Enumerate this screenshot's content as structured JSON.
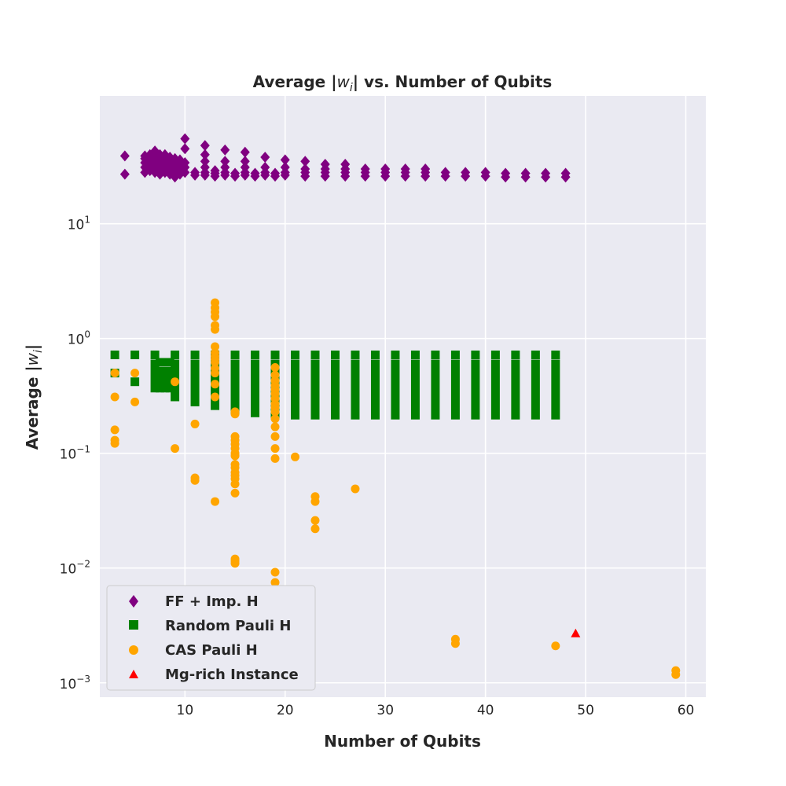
{
  "chart_data": {
    "type": "scatter",
    "title_prefix": "Average |",
    "title_var": "w",
    "title_sub": "i",
    "title_suffix": "| vs. Number of Qubits",
    "xlabel": "Number of Qubits",
    "ylabel_prefix": "Average |",
    "ylabel_var": "w",
    "ylabel_sub": "i",
    "ylabel_suffix": "|",
    "xlim": [
      1.5,
      62
    ],
    "ylim": [
      0.00075,
      130
    ],
    "yscale": "log",
    "grid": true,
    "legend_position": "lower-left",
    "x_ticks": [
      10,
      20,
      30,
      40,
      50,
      60
    ],
    "x_tick_labels": [
      "10",
      "20",
      "30",
      "40",
      "50",
      "60"
    ],
    "y_ticks": [
      0.001,
      0.01,
      0.1,
      1,
      10
    ],
    "y_tick_bases": [
      "10",
      "10",
      "10",
      "10",
      "10"
    ],
    "y_tick_exps": [
      "−3",
      "−2",
      "−1",
      "0",
      "1"
    ],
    "series": [
      {
        "name": "FF + Imp. H",
        "marker": "diamond",
        "color": "#800080",
        "points": [
          [
            4,
            27
          ],
          [
            4,
            39
          ],
          [
            6,
            28
          ],
          [
            6,
            31
          ],
          [
            6,
            34
          ],
          [
            6,
            37
          ],
          [
            6,
            39
          ],
          [
            6.5,
            29
          ],
          [
            6.5,
            33
          ],
          [
            6.5,
            36
          ],
          [
            6.5,
            40
          ],
          [
            7,
            28
          ],
          [
            7,
            31
          ],
          [
            7,
            34
          ],
          [
            7,
            37
          ],
          [
            7,
            40
          ],
          [
            7,
            43
          ],
          [
            7.5,
            27
          ],
          [
            7.5,
            30
          ],
          [
            7.5,
            33
          ],
          [
            7.5,
            36
          ],
          [
            7.5,
            40
          ],
          [
            8,
            28
          ],
          [
            8,
            31
          ],
          [
            8,
            34
          ],
          [
            8,
            37
          ],
          [
            8,
            40
          ],
          [
            8.5,
            27
          ],
          [
            8.5,
            30
          ],
          [
            8.5,
            34
          ],
          [
            8.5,
            38
          ],
          [
            9,
            25.5
          ],
          [
            9,
            28
          ],
          [
            9,
            31
          ],
          [
            9,
            34
          ],
          [
            9,
            37
          ],
          [
            9.5,
            27
          ],
          [
            9.5,
            30
          ],
          [
            9.5,
            33
          ],
          [
            9.5,
            36
          ],
          [
            10,
            28
          ],
          [
            10,
            31
          ],
          [
            10,
            34
          ],
          [
            10,
            45
          ],
          [
            10,
            55
          ],
          [
            11,
            26.5
          ],
          [
            11,
            28
          ],
          [
            12,
            26.5
          ],
          [
            12,
            28
          ],
          [
            12,
            31
          ],
          [
            12,
            35
          ],
          [
            12,
            40
          ],
          [
            12,
            48
          ],
          [
            13,
            26
          ],
          [
            13,
            27.5
          ],
          [
            13,
            29
          ],
          [
            14,
            26.5
          ],
          [
            14,
            28
          ],
          [
            14,
            31
          ],
          [
            14,
            35
          ],
          [
            14,
            44
          ],
          [
            15,
            26
          ],
          [
            15,
            27.5
          ],
          [
            16,
            26.5
          ],
          [
            16,
            28
          ],
          [
            16,
            31
          ],
          [
            16,
            35
          ],
          [
            16,
            42
          ],
          [
            17,
            26
          ],
          [
            17,
            27.5
          ],
          [
            18,
            26.5
          ],
          [
            18,
            28
          ],
          [
            18,
            31
          ],
          [
            18,
            38
          ],
          [
            19,
            26
          ],
          [
            19,
            27.5
          ],
          [
            20,
            26.5
          ],
          [
            20,
            28
          ],
          [
            20,
            31
          ],
          [
            20,
            36
          ],
          [
            22,
            26
          ],
          [
            22,
            28
          ],
          [
            22,
            30
          ],
          [
            22,
            35
          ],
          [
            24,
            26
          ],
          [
            24,
            28
          ],
          [
            24,
            30
          ],
          [
            24,
            33
          ],
          [
            26,
            26
          ],
          [
            26,
            28
          ],
          [
            26,
            30
          ],
          [
            26,
            33
          ],
          [
            28,
            26
          ],
          [
            28,
            28
          ],
          [
            28,
            30
          ],
          [
            30,
            26
          ],
          [
            30,
            28
          ],
          [
            30,
            30
          ],
          [
            32,
            26
          ],
          [
            32,
            28
          ],
          [
            32,
            30
          ],
          [
            34,
            26
          ],
          [
            34,
            28
          ],
          [
            34,
            30
          ],
          [
            36,
            26
          ],
          [
            36,
            28
          ],
          [
            38,
            26
          ],
          [
            38,
            28
          ],
          [
            40,
            26
          ],
          [
            40,
            28
          ],
          [
            42,
            25.5
          ],
          [
            42,
            27.5
          ],
          [
            44,
            25.5
          ],
          [
            44,
            27.5
          ],
          [
            46,
            25.5
          ],
          [
            46,
            27.5
          ],
          [
            48,
            25.5
          ],
          [
            48,
            27.5
          ]
        ]
      },
      {
        "name": "Random Pauli H",
        "marker": "square",
        "color": "#008000",
        "columns": [
          {
            "x": 3,
            "top": 0.72,
            "bottom": 0.5,
            "dense": false
          },
          {
            "x": 5,
            "top": 0.72,
            "bottom": 0.42,
            "dense": false
          },
          {
            "x": 7,
            "top": 0.72,
            "bottom": 0.37,
            "dense": true
          },
          {
            "x": 7.5,
            "top": 0.62,
            "bottom": 0.37,
            "dense": true
          },
          {
            "x": 8,
            "top": 0.62,
            "bottom": 0.37,
            "dense": true
          },
          {
            "x": 8.5,
            "top": 0.62,
            "bottom": 0.37,
            "dense": true
          },
          {
            "x": 9,
            "top": 0.72,
            "bottom": 0.31,
            "dense": true
          },
          {
            "x": 11,
            "top": 0.72,
            "bottom": 0.28,
            "dense": true
          },
          {
            "x": 13,
            "top": 0.72,
            "bottom": 0.26,
            "dense": true
          },
          {
            "x": 15,
            "top": 0.72,
            "bottom": 0.24,
            "dense": true
          },
          {
            "x": 17,
            "top": 0.72,
            "bottom": 0.225,
            "dense": true
          },
          {
            "x": 19,
            "top": 0.72,
            "bottom": 0.215,
            "dense": true
          },
          {
            "x": 21,
            "top": 0.72,
            "bottom": 0.215,
            "dense": true
          },
          {
            "x": 23,
            "top": 0.72,
            "bottom": 0.215,
            "dense": true
          },
          {
            "x": 25,
            "top": 0.72,
            "bottom": 0.215,
            "dense": true
          },
          {
            "x": 27,
            "top": 0.72,
            "bottom": 0.215,
            "dense": true
          },
          {
            "x": 29,
            "top": 0.72,
            "bottom": 0.215,
            "dense": true
          },
          {
            "x": 31,
            "top": 0.72,
            "bottom": 0.215,
            "dense": true
          },
          {
            "x": 33,
            "top": 0.72,
            "bottom": 0.215,
            "dense": true
          },
          {
            "x": 35,
            "top": 0.72,
            "bottom": 0.215,
            "dense": true
          },
          {
            "x": 37,
            "top": 0.72,
            "bottom": 0.215,
            "dense": true
          },
          {
            "x": 39,
            "top": 0.72,
            "bottom": 0.215,
            "dense": true
          },
          {
            "x": 41,
            "top": 0.72,
            "bottom": 0.215,
            "dense": true
          },
          {
            "x": 43,
            "top": 0.72,
            "bottom": 0.215,
            "dense": true
          },
          {
            "x": 45,
            "top": 0.72,
            "bottom": 0.215,
            "dense": true
          },
          {
            "x": 47,
            "top": 0.72,
            "bottom": 0.215,
            "dense": true
          }
        ]
      },
      {
        "name": "CAS Pauli H",
        "marker": "circle",
        "color": "#FFA500",
        "points": [
          [
            3,
            0.5
          ],
          [
            3,
            0.31
          ],
          [
            3,
            0.16
          ],
          [
            3,
            0.13
          ],
          [
            3,
            0.122
          ],
          [
            5,
            0.5
          ],
          [
            5,
            0.28
          ],
          [
            9,
            0.42
          ],
          [
            9,
            0.11
          ],
          [
            11,
            0.18
          ],
          [
            11,
            0.061
          ],
          [
            11,
            0.058
          ],
          [
            13,
            2.05
          ],
          [
            13,
            1.85
          ],
          [
            13,
            1.7
          ],
          [
            13,
            1.55
          ],
          [
            13,
            1.3
          ],
          [
            13,
            1.2
          ],
          [
            13,
            0.85
          ],
          [
            13,
            0.75
          ],
          [
            13,
            0.7
          ],
          [
            13,
            0.66
          ],
          [
            13,
            0.62
          ],
          [
            13,
            0.55
          ],
          [
            13,
            0.5
          ],
          [
            13,
            0.4
          ],
          [
            13,
            0.31
          ],
          [
            13,
            0.038
          ],
          [
            15,
            0.23
          ],
          [
            15,
            0.22
          ],
          [
            15,
            0.14
          ],
          [
            15,
            0.13
          ],
          [
            15,
            0.12
          ],
          [
            15,
            0.11
          ],
          [
            15,
            0.1
          ],
          [
            15,
            0.095
          ],
          [
            15,
            0.08
          ],
          [
            15,
            0.075
          ],
          [
            15,
            0.068
          ],
          [
            15,
            0.064
          ],
          [
            15,
            0.06
          ],
          [
            15,
            0.054
          ],
          [
            15,
            0.045
          ],
          [
            15,
            0.012
          ],
          [
            15,
            0.0115
          ],
          [
            15,
            0.011
          ],
          [
            19,
            0.56
          ],
          [
            19,
            0.48
          ],
          [
            19,
            0.43
          ],
          [
            19,
            0.39
          ],
          [
            19,
            0.36
          ],
          [
            19,
            0.33
          ],
          [
            19,
            0.3
          ],
          [
            19,
            0.27
          ],
          [
            19,
            0.25
          ],
          [
            19,
            0.23
          ],
          [
            19,
            0.2
          ],
          [
            19,
            0.17
          ],
          [
            19,
            0.14
          ],
          [
            19,
            0.11
          ],
          [
            19,
            0.09
          ],
          [
            19,
            0.0092
          ],
          [
            19,
            0.0075
          ],
          [
            19,
            0.0062
          ],
          [
            19,
            0.0058
          ],
          [
            19,
            0.0056
          ],
          [
            21,
            0.093
          ],
          [
            23,
            0.042
          ],
          [
            23,
            0.038
          ],
          [
            23,
            0.026
          ],
          [
            23,
            0.022
          ],
          [
            27,
            0.049
          ],
          [
            37,
            0.0024
          ],
          [
            37,
            0.0022
          ],
          [
            47,
            0.0021
          ],
          [
            59,
            0.00128
          ],
          [
            59,
            0.00118
          ]
        ]
      },
      {
        "name": "Mg-rich Instance",
        "marker": "triangle",
        "color": "#FF0000",
        "points": [
          [
            49,
            0.0027
          ]
        ]
      }
    ]
  }
}
